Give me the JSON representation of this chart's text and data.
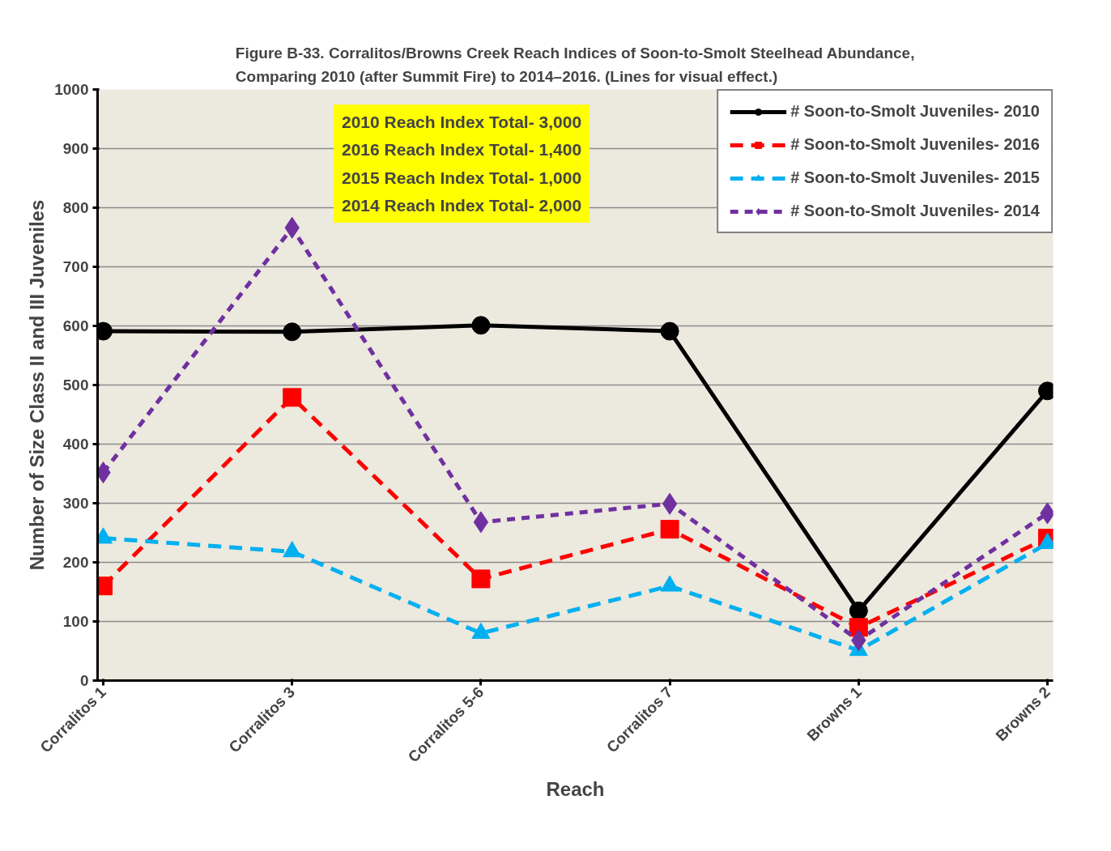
{
  "chart_data": {
    "type": "line",
    "title": "Figure B-33. Corralitos/Browns Creek Reach Indices of Soon-to-Smolt Steelhead Abundance,\nComparing 2010 (after Summit Fire)  to 2014–2016. (Lines for visual effect.)",
    "xlabel": "Reach",
    "ylabel": "Number of Size Class II and III Juveniles",
    "categories": [
      "Corralitos 1",
      "Corralitos 3",
      "Corralitos 5-6",
      "Corralitos 7",
      "Browns 1",
      "Browns 2"
    ],
    "series": [
      {
        "name": "# Soon-to-Smolt Juveniles- 2010",
        "color": "#000000",
        "marker": "circle",
        "line_style": "solid",
        "values": [
          591,
          590,
          601,
          591,
          118,
          490
        ]
      },
      {
        "name": "# Soon-to-Smolt Juveniles- 2016",
        "color": "#ff0000",
        "marker": "square",
        "line_style": "dashed",
        "values": [
          160,
          479,
          172,
          256,
          90,
          241
        ]
      },
      {
        "name": "# Soon-to-Smolt Juveniles- 2015",
        "color": "#00b0f0",
        "marker": "triangle",
        "line_style": "dashed",
        "values": [
          241,
          218,
          80,
          160,
          51,
          232
        ]
      },
      {
        "name": "# Soon-to-Smolt Juveniles- 2014",
        "color": "#7030a0",
        "marker": "diamond",
        "line_style": "dotted",
        "values": [
          352,
          766,
          268,
          299,
          68,
          283
        ]
      }
    ],
    "annotations": [
      "2010 Reach Index Total- 3,000",
      "2016 Reach Index Total- 1,400",
      "2015 Reach Index Total- 1,000",
      "2014 Reach Index Total- 2,000"
    ],
    "ylim": [
      0,
      1000
    ],
    "yticks": [
      0,
      100,
      200,
      300,
      400,
      500,
      600,
      700,
      800,
      900,
      1000
    ],
    "grid": "y",
    "legend": "top right"
  }
}
